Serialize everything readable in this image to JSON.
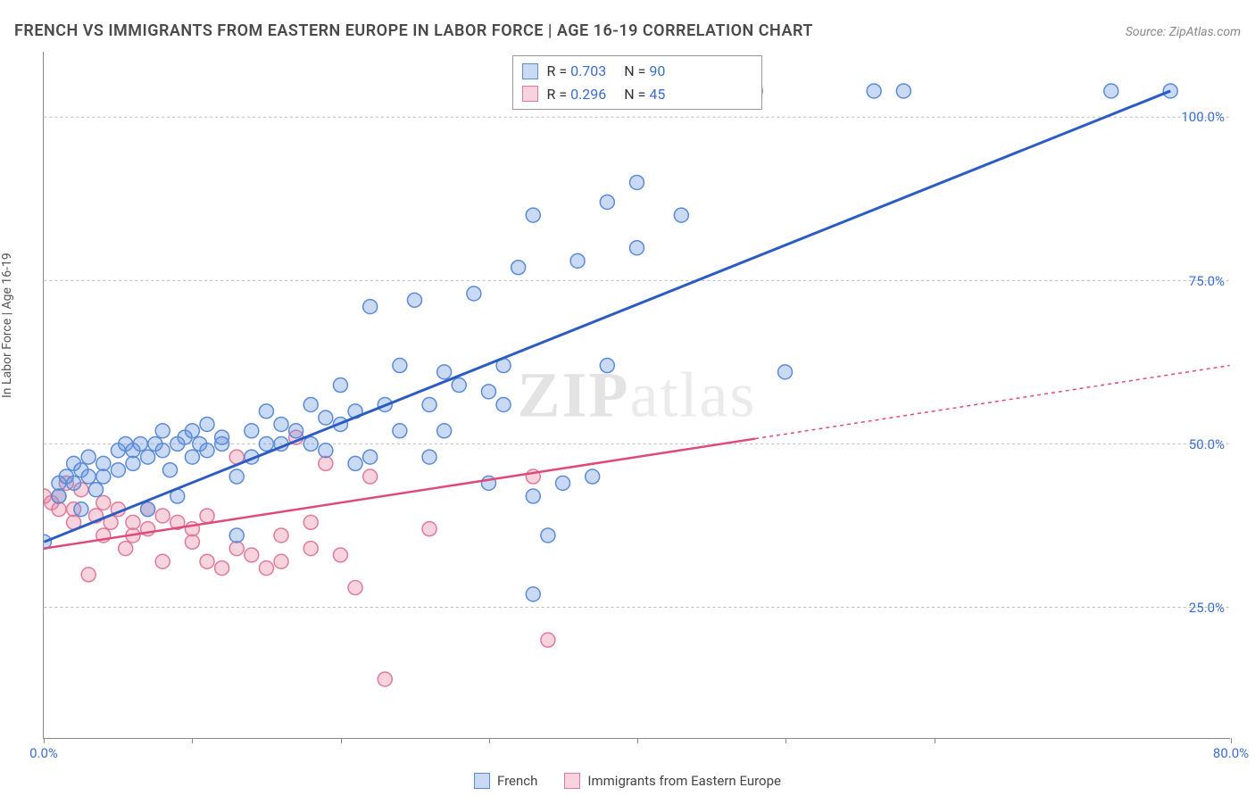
{
  "title": "FRENCH VS IMMIGRANTS FROM EASTERN EUROPE IN LABOR FORCE | AGE 16-19 CORRELATION CHART",
  "source": "Source: ZipAtlas.com",
  "ylabel": "In Labor Force | Age 16-19",
  "watermark_zip": "ZIP",
  "watermark_atlas": "atlas",
  "chart": {
    "type": "scatter",
    "xlim": [
      0,
      80
    ],
    "ylim": [
      5,
      110
    ],
    "y_ticks": [
      25.0,
      50.0,
      75.0,
      100.0
    ],
    "y_tick_labels": [
      "25.0%",
      "50.0%",
      "75.0%",
      "100.0%"
    ],
    "x_ticks": [
      0,
      10,
      20,
      30,
      40,
      50,
      60,
      80
    ],
    "x_tick_labels": [
      "0.0%",
      "",
      "",
      "",
      "",
      "",
      "",
      "80.0%"
    ],
    "background_color": "#ffffff",
    "grid_color": "#bbbbbb",
    "marker_radius": 8,
    "marker_stroke_width": 1.5,
    "series": {
      "french": {
        "label": "French",
        "fill": "rgba(102,148,224,0.35)",
        "stroke": "#5a8bd8",
        "line_color": "#2b5cc4",
        "line_width": 3,
        "line_dash": "none",
        "R": "0.703",
        "N": "90",
        "trend": {
          "x1": 0,
          "y1": 35,
          "x2": 76,
          "y2": 104
        },
        "points": [
          [
            0,
            35
          ],
          [
            1,
            44
          ],
          [
            1,
            42
          ],
          [
            1.5,
            45
          ],
          [
            2,
            47
          ],
          [
            2,
            44
          ],
          [
            2.5,
            40
          ],
          [
            2.5,
            46
          ],
          [
            3,
            48
          ],
          [
            3,
            45
          ],
          [
            3.5,
            43
          ],
          [
            4,
            47
          ],
          [
            4,
            45
          ],
          [
            5,
            46
          ],
          [
            5,
            49
          ],
          [
            5.5,
            50
          ],
          [
            6,
            49
          ],
          [
            6,
            47
          ],
          [
            6.5,
            50
          ],
          [
            7,
            48
          ],
          [
            7,
            40
          ],
          [
            7.5,
            50
          ],
          [
            8,
            52
          ],
          [
            8,
            49
          ],
          [
            8.5,
            46
          ],
          [
            9,
            50
          ],
          [
            9,
            42
          ],
          [
            9.5,
            51
          ],
          [
            10,
            52
          ],
          [
            10,
            48
          ],
          [
            10.5,
            50
          ],
          [
            11,
            49
          ],
          [
            11,
            53
          ],
          [
            12,
            51
          ],
          [
            12,
            50
          ],
          [
            13,
            45
          ],
          [
            13,
            36
          ],
          [
            14,
            48
          ],
          [
            14,
            52
          ],
          [
            15,
            55
          ],
          [
            15,
            50
          ],
          [
            16,
            53
          ],
          [
            16,
            50
          ],
          [
            17,
            52
          ],
          [
            18,
            56
          ],
          [
            18,
            50
          ],
          [
            19,
            49
          ],
          [
            19,
            54
          ],
          [
            20,
            59
          ],
          [
            20,
            53
          ],
          [
            21,
            47
          ],
          [
            21,
            55
          ],
          [
            22,
            48
          ],
          [
            22,
            71
          ],
          [
            23,
            56
          ],
          [
            24,
            52
          ],
          [
            24,
            62
          ],
          [
            25,
            72
          ],
          [
            26,
            48
          ],
          [
            26,
            56
          ],
          [
            27,
            61
          ],
          [
            27,
            52
          ],
          [
            28,
            59
          ],
          [
            29,
            73
          ],
          [
            30,
            44
          ],
          [
            30,
            58
          ],
          [
            31,
            56
          ],
          [
            31,
            62
          ],
          [
            32,
            77
          ],
          [
            33,
            27
          ],
          [
            33,
            42
          ],
          [
            33,
            85
          ],
          [
            34,
            36
          ],
          [
            35,
            44
          ],
          [
            36,
            78
          ],
          [
            37,
            45
          ],
          [
            37,
            104
          ],
          [
            38,
            62
          ],
          [
            38,
            87
          ],
          [
            39,
            104
          ],
          [
            40,
            90
          ],
          [
            40,
            80
          ],
          [
            42,
            104
          ],
          [
            43,
            85
          ],
          [
            44,
            104
          ],
          [
            50,
            61
          ],
          [
            56,
            104
          ],
          [
            58,
            104
          ],
          [
            72,
            104
          ],
          [
            76,
            104
          ]
        ]
      },
      "immigrants": {
        "label": "Immigrants from Eastern Europe",
        "fill": "rgba(232,128,160,0.35)",
        "stroke": "#e07a9a",
        "line_color": "#e04a7a",
        "line_width": 2.5,
        "line_dash": "4 4",
        "R": "0.296",
        "N": "45",
        "trend": {
          "x1": 0,
          "y1": 34,
          "x2": 80,
          "y2": 62
        },
        "trend_solid_until_x": 48,
        "points": [
          [
            0,
            42
          ],
          [
            0.5,
            41
          ],
          [
            1,
            42
          ],
          [
            1,
            40
          ],
          [
            1.5,
            44
          ],
          [
            2,
            40
          ],
          [
            2,
            38
          ],
          [
            2.5,
            43
          ],
          [
            3,
            30
          ],
          [
            3.5,
            39
          ],
          [
            4,
            41
          ],
          [
            4,
            36
          ],
          [
            4.5,
            38
          ],
          [
            5,
            40
          ],
          [
            5.5,
            34
          ],
          [
            6,
            38
          ],
          [
            6,
            36
          ],
          [
            7,
            37
          ],
          [
            7,
            40
          ],
          [
            8,
            32
          ],
          [
            8,
            39
          ],
          [
            9,
            38
          ],
          [
            10,
            35
          ],
          [
            10,
            37
          ],
          [
            11,
            39
          ],
          [
            11,
            32
          ],
          [
            12,
            31
          ],
          [
            13,
            34
          ],
          [
            13,
            48
          ],
          [
            14,
            33
          ],
          [
            15,
            31
          ],
          [
            16,
            36
          ],
          [
            16,
            32
          ],
          [
            17,
            51
          ],
          [
            18,
            38
          ],
          [
            18,
            34
          ],
          [
            19,
            47
          ],
          [
            20,
            33
          ],
          [
            21,
            28
          ],
          [
            22,
            45
          ],
          [
            23,
            14
          ],
          [
            26,
            37
          ],
          [
            33,
            45
          ],
          [
            34,
            20
          ],
          [
            48,
            104
          ]
        ]
      }
    }
  },
  "legend_labels": {
    "R_prefix": "R = ",
    "N_prefix": "N = "
  }
}
